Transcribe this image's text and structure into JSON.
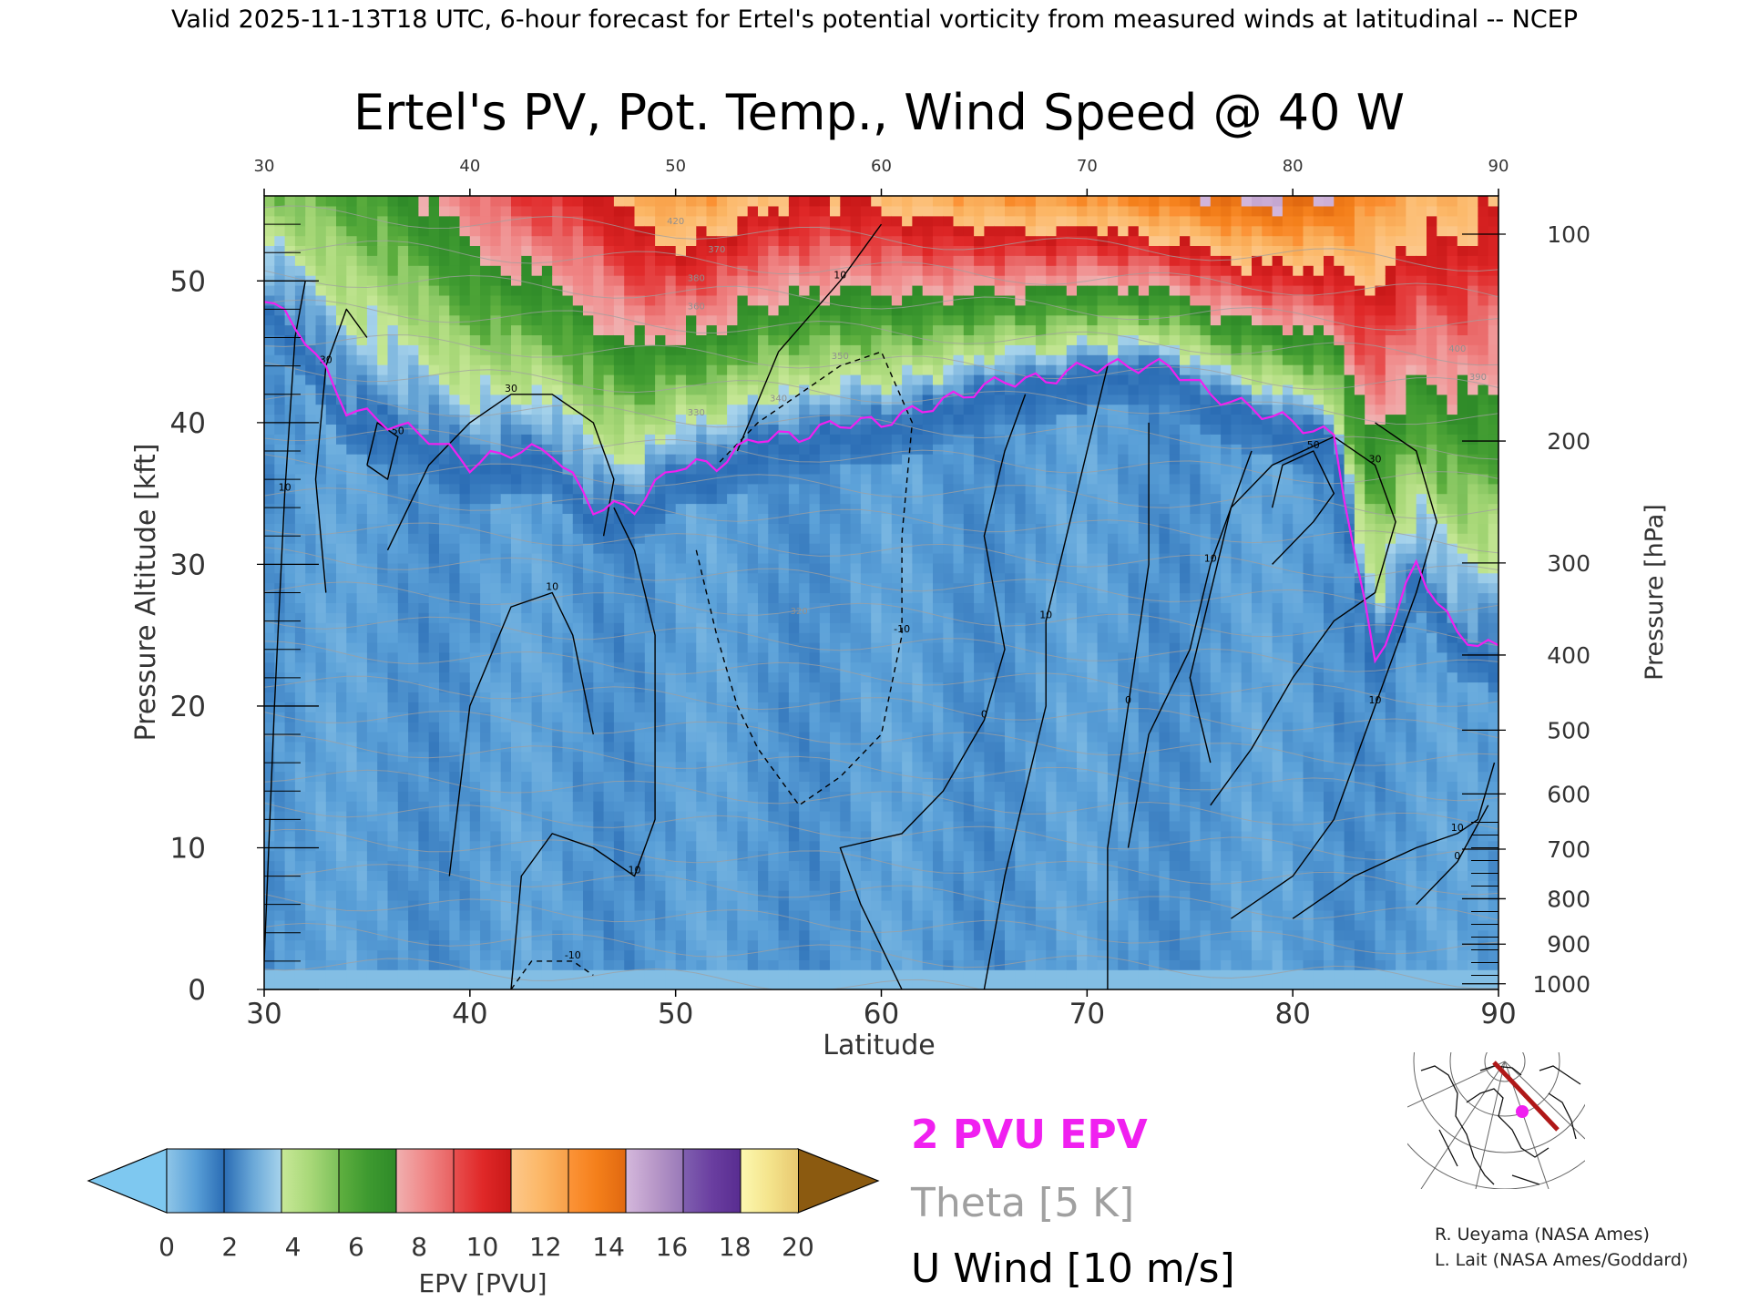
{
  "header": {
    "valid_line": "Valid 2025-11-13T18 UTC, 6-hour forecast for Ertel's potential vorticity from measured winds at latitudinal -- NCEP"
  },
  "chart_data": {
    "type": "heatmap",
    "title": "Ertel's PV, Pot. Temp., Wind Speed @ 40 W",
    "xlabel": "Latitude",
    "ylabel_left": "Pressure Altitude [kft]",
    "ylabel_right": "Pressure [hPa]",
    "xlim": [
      30,
      90
    ],
    "ylim": [
      0,
      56
    ],
    "x_ticks": [
      "30",
      "40",
      "50",
      "60",
      "70",
      "80",
      "90"
    ],
    "y_ticks": [
      "0",
      "10",
      "20",
      "30",
      "40",
      "50"
    ],
    "pressure_ticks": [
      {
        "label": "100",
        "kft": 53.3
      },
      {
        "label": "200",
        "kft": 38.7
      },
      {
        "label": "300",
        "kft": 30.1
      },
      {
        "label": "400",
        "kft": 23.6
      },
      {
        "label": "500",
        "kft": 18.3
      },
      {
        "label": "600",
        "kft": 13.8
      },
      {
        "label": "700",
        "kft": 9.9
      },
      {
        "label": "800",
        "kft": 6.4
      },
      {
        "label": "900",
        "kft": 3.2
      },
      {
        "label": "1000",
        "kft": 0.4
      }
    ],
    "colorbar": {
      "label": "EPV [PVU]",
      "tick_labels": [
        "0",
        "2",
        "4",
        "6",
        "8",
        "10",
        "12",
        "14",
        "16",
        "18",
        "20"
      ],
      "under_color": "#7ec8f0",
      "over_color": "#8b5a10",
      "segments": [
        [
          "#8fc6e8",
          "#5aa0d8",
          "#2a6cb4"
        ],
        [
          "#2a6cb4",
          "#6aa8d8",
          "#a8d4ec"
        ],
        [
          "#c8e898",
          "#a8d878",
          "#7cc05a"
        ],
        [
          "#60b040",
          "#3e9a30",
          "#2e8a28"
        ],
        [
          "#f0b0b0",
          "#f08888",
          "#e86060"
        ],
        [
          "#e85050",
          "#e02828",
          "#c81818"
        ],
        [
          "#fcc88c",
          "#fcb868",
          "#f8a048"
        ],
        [
          "#fc9438",
          "#f47f1a",
          "#e06810"
        ],
        [
          "#d4b8dc",
          "#b898c8",
          "#9878b8"
        ],
        [
          "#8060b0",
          "#6a3ea0",
          "#582c90"
        ],
        [
          "#fcf8b0",
          "#f4e48c",
          "#e8c870"
        ]
      ]
    },
    "epv_profiles": [
      {
        "lat": 30,
        "tropo_kft": 49,
        "upper_pvu": 5.0
      },
      {
        "lat": 32,
        "tropo_kft": 46,
        "upper_pvu": 5.5
      },
      {
        "lat": 34,
        "tropo_kft": 41,
        "upper_pvu": 6.0
      },
      {
        "lat": 36,
        "tropo_kft": 40,
        "upper_pvu": 6.5
      },
      {
        "lat": 38,
        "tropo_kft": 39,
        "upper_pvu": 7.5
      },
      {
        "lat": 40,
        "tropo_kft": 37,
        "upper_pvu": 8.5
      },
      {
        "lat": 42,
        "tropo_kft": 38,
        "upper_pvu": 9.5
      },
      {
        "lat": 44,
        "tropo_kft": 38,
        "upper_pvu": 10.0
      },
      {
        "lat": 46,
        "tropo_kft": 34,
        "upper_pvu": 10.5
      },
      {
        "lat": 48,
        "tropo_kft": 34,
        "upper_pvu": 12.0
      },
      {
        "lat": 50,
        "tropo_kft": 37,
        "upper_pvu": 13.0
      },
      {
        "lat": 52,
        "tropo_kft": 37,
        "upper_pvu": 12.5
      },
      {
        "lat": 54,
        "tropo_kft": 39,
        "upper_pvu": 11.5
      },
      {
        "lat": 56,
        "tropo_kft": 39,
        "upper_pvu": 11.0
      },
      {
        "lat": 58,
        "tropo_kft": 40,
        "upper_pvu": 11.0
      },
      {
        "lat": 60,
        "tropo_kft": 40,
        "upper_pvu": 11.5
      },
      {
        "lat": 62,
        "tropo_kft": 41,
        "upper_pvu": 12.0
      },
      {
        "lat": 64,
        "tropo_kft": 42,
        "upper_pvu": 12.5
      },
      {
        "lat": 66,
        "tropo_kft": 43,
        "upper_pvu": 13.0
      },
      {
        "lat": 68,
        "tropo_kft": 43,
        "upper_pvu": 13.0
      },
      {
        "lat": 70,
        "tropo_kft": 44,
        "upper_pvu": 13.0
      },
      {
        "lat": 72,
        "tropo_kft": 44,
        "upper_pvu": 13.5
      },
      {
        "lat": 74,
        "tropo_kft": 44,
        "upper_pvu": 14.0
      },
      {
        "lat": 76,
        "tropo_kft": 42,
        "upper_pvu": 14.5
      },
      {
        "lat": 78,
        "tropo_kft": 41,
        "upper_pvu": 15.0
      },
      {
        "lat": 80,
        "tropo_kft": 40,
        "upper_pvu": 15.0
      },
      {
        "lat": 82,
        "tropo_kft": 39,
        "upper_pvu": 14.5
      },
      {
        "lat": 84,
        "tropo_kft": 23,
        "upper_pvu": 13.0
      },
      {
        "lat": 86,
        "tropo_kft": 30,
        "upper_pvu": 12.0
      },
      {
        "lat": 88,
        "tropo_kft": 25,
        "upper_pvu": 12.0
      },
      {
        "lat": 90,
        "tropo_kft": 24,
        "upper_pvu": 11.0
      }
    ],
    "wind_contours": [
      {
        "label": "10",
        "style": "solid",
        "points": [
          [
            30,
            2
          ],
          [
            30.5,
            20
          ],
          [
            31,
            35
          ],
          [
            31.5,
            46
          ],
          [
            32,
            50
          ]
        ]
      },
      {
        "label": "30",
        "style": "solid",
        "points": [
          [
            33,
            28
          ],
          [
            32.5,
            36
          ],
          [
            33,
            44
          ],
          [
            34,
            48
          ],
          [
            35,
            46
          ]
        ]
      },
      {
        "label": "50",
        "style": "solid",
        "points": [
          [
            35,
            37
          ],
          [
            35.5,
            40
          ],
          [
            36.5,
            39
          ],
          [
            36,
            36
          ],
          [
            35,
            37
          ]
        ]
      },
      {
        "label": "30",
        "style": "solid",
        "points": [
          [
            36,
            31
          ],
          [
            37,
            34
          ],
          [
            38,
            37
          ],
          [
            40,
            40
          ],
          [
            42,
            42
          ],
          [
            44,
            42
          ],
          [
            46,
            40
          ],
          [
            47,
            36
          ],
          [
            46.5,
            32
          ]
        ]
      },
      {
        "label": "10",
        "style": "solid",
        "points": [
          [
            42,
            0
          ],
          [
            42.5,
            8
          ],
          [
            44,
            11
          ],
          [
            46,
            10
          ],
          [
            48,
            8
          ],
          [
            49,
            12
          ],
          [
            49,
            25
          ],
          [
            48,
            31
          ],
          [
            47,
            34
          ]
        ]
      },
      {
        "label": "10",
        "style": "solid",
        "points": [
          [
            39,
            8
          ],
          [
            40,
            20
          ],
          [
            42,
            27
          ],
          [
            44,
            28
          ],
          [
            45,
            25
          ],
          [
            46,
            18
          ]
        ]
      },
      {
        "label": "-10",
        "style": "dashed",
        "points": [
          [
            51,
            31
          ],
          [
            52,
            25
          ],
          [
            53,
            20
          ],
          [
            54,
            17
          ],
          [
            56,
            13
          ],
          [
            58,
            15
          ],
          [
            60,
            18
          ],
          [
            61,
            25
          ],
          [
            61,
            32
          ],
          [
            61.5,
            40
          ],
          [
            60,
            45
          ],
          [
            58,
            44
          ],
          [
            56,
            42
          ],
          [
            54,
            40
          ],
          [
            52,
            37
          ]
        ]
      },
      {
        "label": "-10",
        "style": "dashed",
        "points": [
          [
            42,
            0
          ],
          [
            43,
            2
          ],
          [
            45,
            2
          ],
          [
            46,
            1
          ]
        ]
      },
      {
        "label": "10",
        "style": "solid",
        "points": [
          [
            53,
            38
          ],
          [
            55,
            45
          ],
          [
            58,
            50
          ],
          [
            60,
            54
          ]
        ]
      },
      {
        "label": "0",
        "style": "solid",
        "points": [
          [
            61,
            0
          ],
          [
            59,
            6
          ],
          [
            58,
            10
          ],
          [
            61,
            11
          ],
          [
            63,
            14
          ],
          [
            65,
            19
          ],
          [
            66,
            24
          ],
          [
            65,
            32
          ],
          [
            66,
            38
          ],
          [
            67,
            42
          ]
        ]
      },
      {
        "label": "10",
        "style": "solid",
        "points": [
          [
            65,
            0
          ],
          [
            66,
            8
          ],
          [
            67,
            14
          ],
          [
            68,
            20
          ],
          [
            68,
            26
          ],
          [
            69,
            32
          ],
          [
            70,
            38
          ],
          [
            71,
            44
          ]
        ]
      },
      {
        "label": "0",
        "style": "solid",
        "points": [
          [
            71,
            0
          ],
          [
            71,
            10
          ],
          [
            72,
            20
          ],
          [
            73,
            30
          ],
          [
            73,
            40
          ]
        ]
      },
      {
        "label": "10",
        "style": "solid",
        "points": [
          [
            72,
            10
          ],
          [
            73,
            18
          ],
          [
            75,
            24
          ],
          [
            76,
            30
          ],
          [
            77,
            34
          ],
          [
            78,
            38
          ]
        ]
      },
      {
        "label": "30",
        "style": "solid",
        "points": [
          [
            76,
            13
          ],
          [
            78,
            17
          ],
          [
            80,
            22
          ],
          [
            82,
            26
          ],
          [
            84,
            28
          ],
          [
            85,
            33
          ],
          [
            84,
            37
          ],
          [
            82,
            39
          ],
          [
            79,
            37
          ],
          [
            77,
            34
          ],
          [
            76,
            28
          ],
          [
            75,
            22
          ],
          [
            76,
            16
          ]
        ]
      },
      {
        "label": "50",
        "style": "solid",
        "points": [
          [
            79,
            30
          ],
          [
            81,
            33
          ],
          [
            82,
            35
          ],
          [
            81,
            38
          ],
          [
            79.5,
            37
          ],
          [
            79,
            34
          ]
        ]
      },
      {
        "label": "10",
        "style": "solid",
        "points": [
          [
            80,
            5
          ],
          [
            83,
            8
          ],
          [
            86,
            10
          ],
          [
            88,
            11
          ],
          [
            89,
            12
          ],
          [
            89.8,
            16
          ]
        ]
      },
      {
        "label": "0",
        "style": "solid",
        "points": [
          [
            86,
            6
          ],
          [
            88,
            9
          ],
          [
            89.5,
            13
          ]
        ]
      },
      {
        "label": "10",
        "style": "solid",
        "points": [
          [
            84,
            40
          ],
          [
            86,
            38
          ],
          [
            87,
            33
          ],
          [
            86,
            28
          ],
          [
            85,
            24
          ],
          [
            84,
            20
          ],
          [
            83,
            16
          ],
          [
            82,
            12
          ],
          [
            80,
            8
          ],
          [
            77,
            5
          ]
        ]
      }
    ],
    "theta_labels": [
      "320",
      "330",
      "340",
      "350",
      "360",
      "370",
      "380",
      "390",
      "400",
      "420"
    ],
    "legend_entries": [
      "2 PVU EPV",
      "Theta [5 K]",
      "U Wind [10 m/s]"
    ]
  },
  "credits": {
    "line1": "R. Ueyama (NASA Ames)",
    "line2": "L. Lait (NASA Ames/Goddard)"
  },
  "colors": {
    "pv2_line": "#f020f0",
    "theta": "#a0a0a0",
    "wind": "#000000",
    "locator_path": "#b01818",
    "locator_dot": "#f020f0"
  }
}
